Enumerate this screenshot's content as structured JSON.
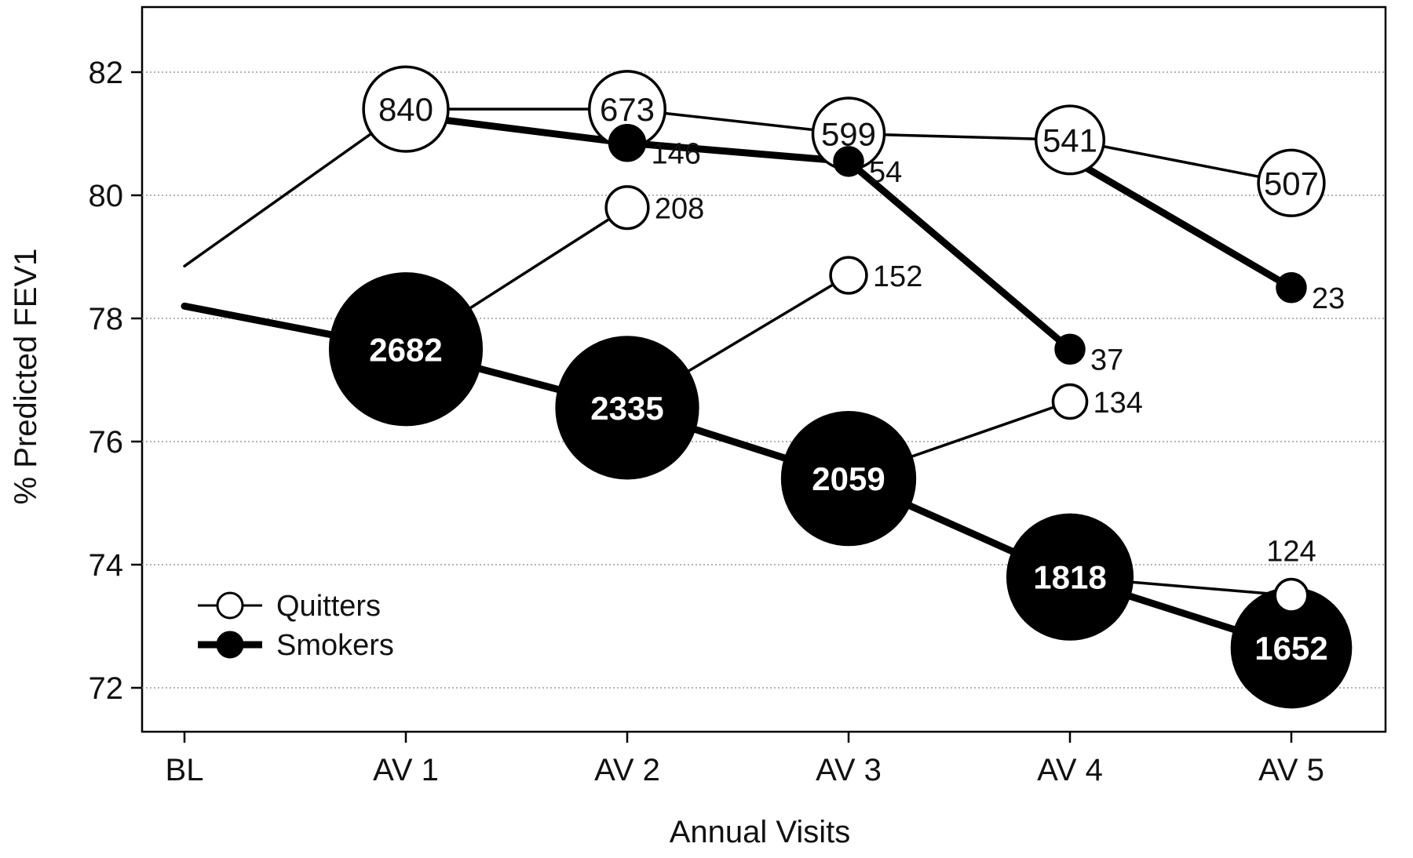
{
  "chart_data": {
    "type": "scatter",
    "title": "",
    "xlabel": "Annual Visits",
    "ylabel": "% Predicted FEV1",
    "categories": [
      "BL",
      "AV 1",
      "AV 2",
      "AV 3",
      "AV 4",
      "AV 5"
    ],
    "yticks": [
      72,
      74,
      76,
      78,
      80,
      82
    ],
    "ylim": [
      71.0,
      83.3
    ],
    "grid": true,
    "legend": {
      "placement": "bottom-left",
      "entries": [
        {
          "label": "Quitters",
          "marker": "open"
        },
        {
          "label": "Smokers",
          "marker": "filled"
        }
      ]
    },
    "series": [
      {
        "role": "smokers_main",
        "style": "filled",
        "points": [
          {
            "x": 0,
            "y": 78.2,
            "n": null
          },
          {
            "x": 1,
            "y": 77.5,
            "n": "2682"
          },
          {
            "x": 2,
            "y": 76.55,
            "n": "2335"
          },
          {
            "x": 3,
            "y": 75.4,
            "n": "2059"
          },
          {
            "x": 4,
            "y": 73.8,
            "n": "1818"
          },
          {
            "x": 5,
            "y": 72.65,
            "n": "1652"
          }
        ]
      },
      {
        "role": "quitters_main",
        "style": "open",
        "points": [
          {
            "x": 0,
            "y": 78.85,
            "n": null
          },
          {
            "x": 1,
            "y": 81.4,
            "n": "840"
          },
          {
            "x": 2,
            "y": 81.4,
            "n": "673"
          },
          {
            "x": 3,
            "y": 81.0,
            "n": "599"
          },
          {
            "x": 4,
            "y": 80.9,
            "n": "541"
          },
          {
            "x": 5,
            "y": 80.2,
            "n": "507"
          }
        ]
      },
      {
        "role": "relapsers_from_quitters",
        "style": "filled",
        "points": [
          {
            "x": 1,
            "y": 81.3,
            "n": null
          },
          {
            "x": 2,
            "y": 80.85,
            "n": "146"
          },
          {
            "x": 3,
            "y": 80.55,
            "n": "54"
          },
          {
            "x": 4,
            "y": 77.5,
            "n": "37"
          }
        ]
      },
      {
        "role": "relapsers_from_quitters_2",
        "style": "filled",
        "points": [
          {
            "x": 4,
            "y": 80.6,
            "n": null
          },
          {
            "x": 5,
            "y": 78.5,
            "n": "23"
          }
        ]
      },
      {
        "role": "new_quitters_av2",
        "style": "open",
        "points": [
          {
            "x": 1,
            "y": 77.5,
            "n": null
          },
          {
            "x": 2,
            "y": 79.8,
            "n": "208"
          }
        ]
      },
      {
        "role": "new_quitters_av3",
        "style": "open",
        "points": [
          {
            "x": 2,
            "y": 76.55,
            "n": null
          },
          {
            "x": 3,
            "y": 78.7,
            "n": "152"
          }
        ]
      },
      {
        "role": "new_quitters_av4",
        "style": "open",
        "points": [
          {
            "x": 3,
            "y": 75.4,
            "n": null
          },
          {
            "x": 4,
            "y": 76.65,
            "n": "134"
          }
        ]
      },
      {
        "role": "new_quitters_av5",
        "style": "open",
        "points": [
          {
            "x": 4,
            "y": 73.8,
            "n": null
          },
          {
            "x": 5,
            "y": 73.5,
            "n": "124"
          }
        ]
      }
    ]
  }
}
